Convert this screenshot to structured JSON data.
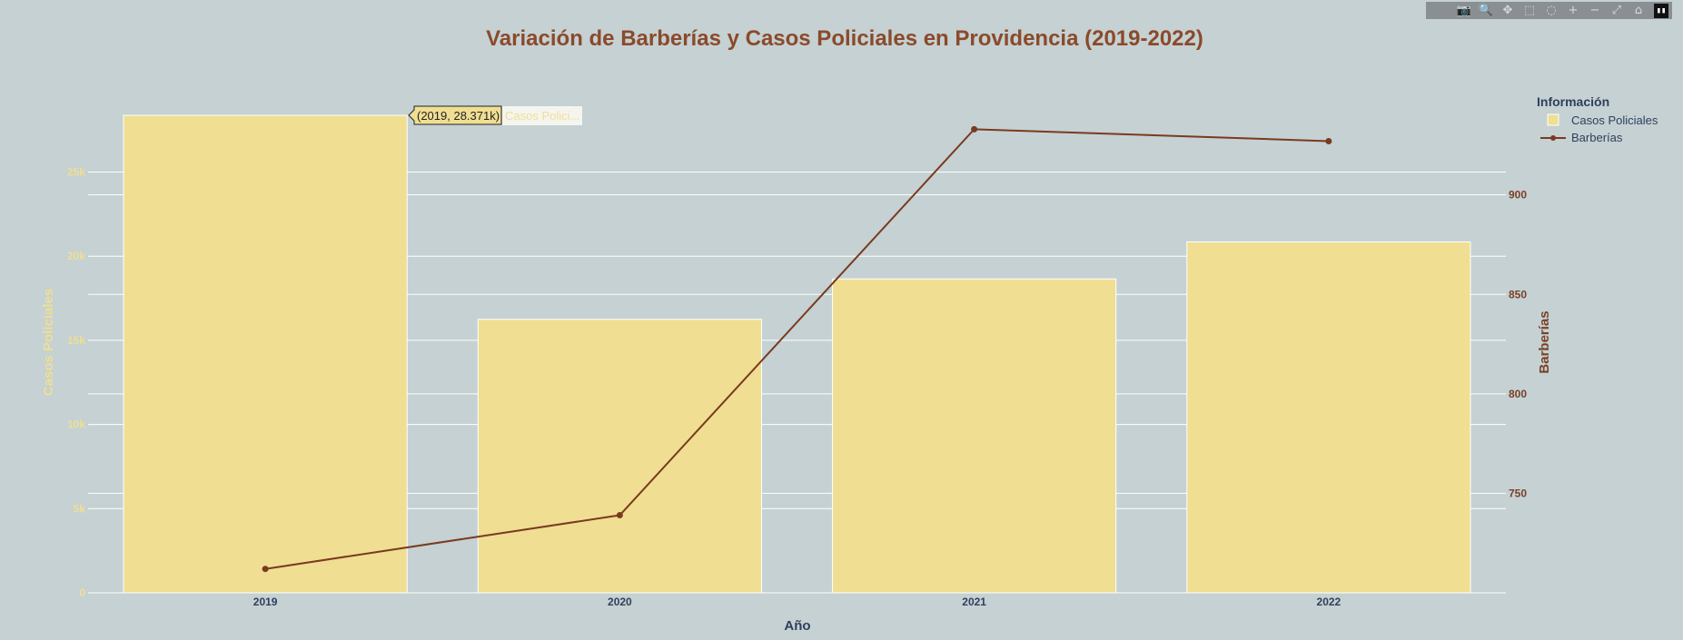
{
  "chart_data": {
    "type": "bar",
    "title": "Variación de Barberías y Casos Policiales en Providencia (2019-2022)",
    "xlabel": "Año",
    "categories": [
      "2019",
      "2020",
      "2021",
      "2022"
    ],
    "series": [
      {
        "name": "Casos Policiales",
        "type": "bar",
        "axis": "left",
        "values": [
          28371,
          16250,
          18650,
          20850
        ],
        "color": "#f0de93"
      },
      {
        "name": "Barberías",
        "type": "line",
        "axis": "right",
        "values": [
          712,
          739,
          933,
          927
        ],
        "color": "#7a3a1f"
      }
    ],
    "y_left": {
      "label": "Casos Policiales",
      "ylim": [
        0,
        28371
      ],
      "ticks": [
        0,
        5000,
        10000,
        15000,
        20000,
        25000
      ],
      "tick_labels": [
        "0",
        "5k",
        "10k",
        "15k",
        "20k",
        "25k"
      ]
    },
    "y_right": {
      "label": "Barberías",
      "ylim": [
        700,
        940
      ],
      "ticks": [
        750,
        800,
        850,
        900
      ],
      "tick_labels": [
        "750",
        "800",
        "850",
        "900"
      ]
    },
    "legend": {
      "title": "Información",
      "placement": "top-right",
      "entries": [
        "Casos Policiales",
        "Barberías"
      ]
    },
    "hover": {
      "value_text": "(2019, 28.371k)",
      "name_text": "Casos Polici..."
    },
    "grid": true,
    "colors": {
      "background": "#c5d1d3",
      "title": "#8b4a2b",
      "bar": "#f0de93",
      "line": "#7a3a1f",
      "grid": "#ffffff"
    }
  },
  "toolbar": {
    "buttons": [
      {
        "name": "camera-icon",
        "glyph": "📷"
      },
      {
        "name": "zoom-icon",
        "glyph": "🔍"
      },
      {
        "name": "pan-icon",
        "glyph": "✥"
      },
      {
        "name": "box-select-icon",
        "glyph": "⬚"
      },
      {
        "name": "lasso-select-icon",
        "glyph": "◌"
      },
      {
        "name": "zoom-in-icon",
        "glyph": "+"
      },
      {
        "name": "zoom-out-icon",
        "glyph": "−"
      },
      {
        "name": "autoscale-icon",
        "glyph": "⤢"
      },
      {
        "name": "home-icon",
        "glyph": "⌂"
      }
    ],
    "logo_glyph": "▮▮"
  }
}
